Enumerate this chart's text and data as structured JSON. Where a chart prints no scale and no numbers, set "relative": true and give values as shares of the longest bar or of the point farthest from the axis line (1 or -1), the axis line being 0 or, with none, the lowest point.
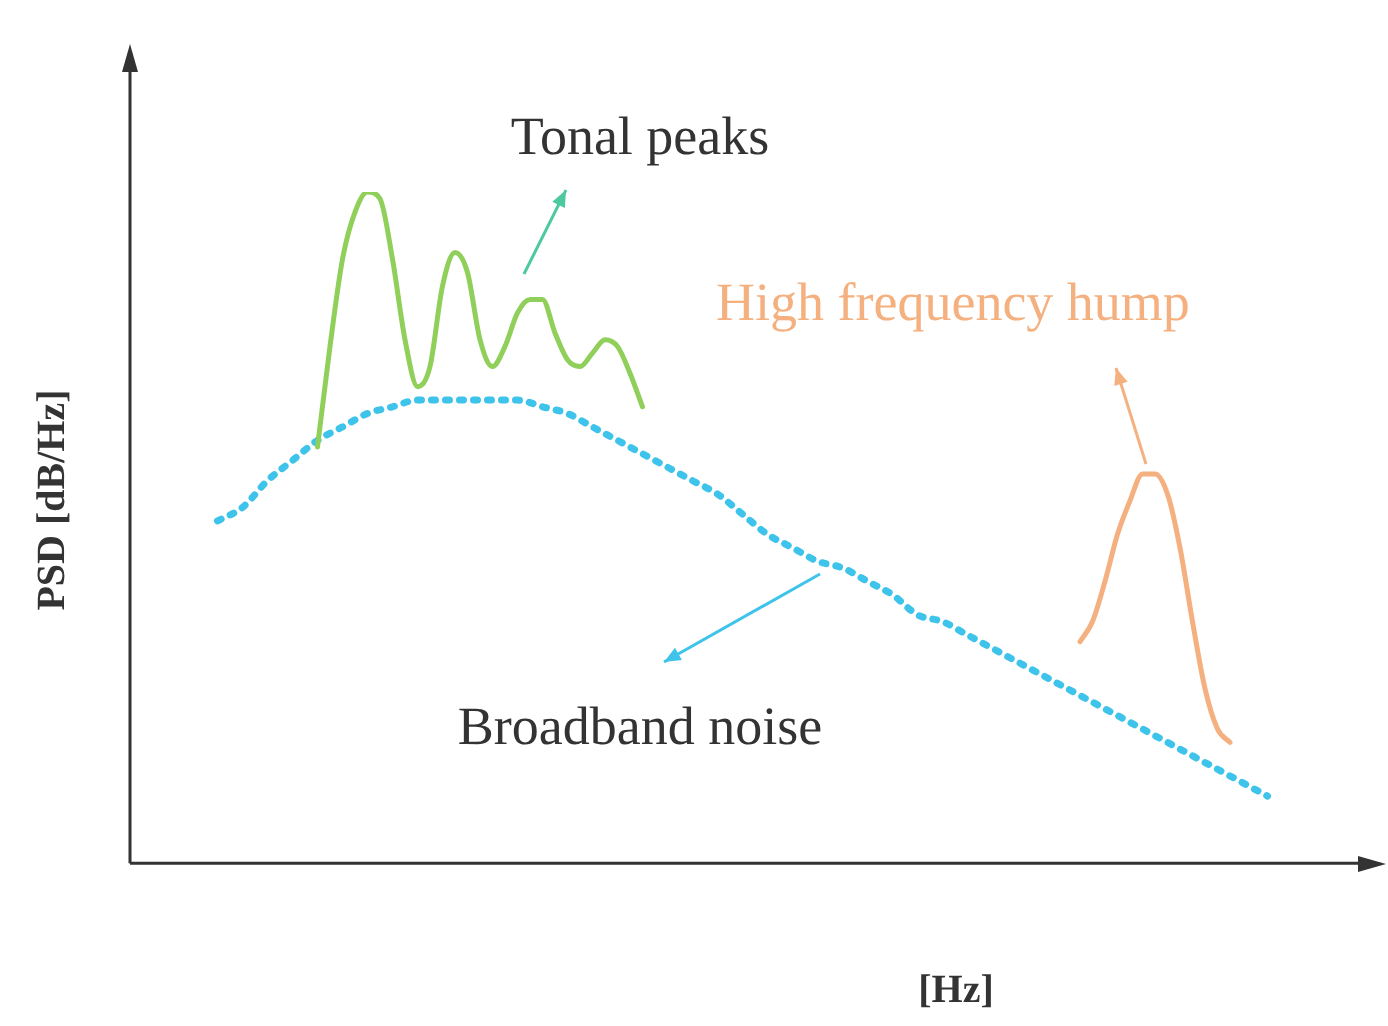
{
  "chart_data": {
    "type": "line",
    "relative": true,
    "xlabel": "[Hz]",
    "ylabel": "PSD [dB/Hz]",
    "marker": "none",
    "categories": [
      null,
      null,
      null,
      null,
      null,
      null,
      null,
      null,
      null,
      null,
      null,
      null,
      null,
      null,
      null,
      null,
      null,
      null,
      null,
      null,
      null,
      null,
      null,
      null,
      null,
      null,
      null,
      null,
      null,
      null,
      null,
      null,
      null,
      null,
      null,
      null,
      null,
      null,
      null,
      null,
      null,
      null,
      null,
      null,
      null,
      null,
      null,
      null,
      null,
      null,
      null,
      null,
      null,
      null,
      null,
      null,
      null,
      null,
      null,
      null,
      null,
      null,
      null,
      null,
      null,
      null,
      null,
      null,
      null,
      null,
      null,
      null,
      null,
      null,
      null,
      null,
      null,
      null,
      null,
      null,
      null,
      null,
      null,
      null,
      null,
      null,
      null,
      null,
      null,
      null,
      null,
      null,
      null,
      null,
      null,
      null,
      null,
      null,
      null,
      null,
      null
    ],
    "series": [
      {
        "name": "Tonal peaks",
        "color": "#8fcf5a",
        "line_style": "solid",
        "values": [
          null,
          null,
          null,
          null,
          null,
          null,
          null,
          null,
          null,
          null,
          null,
          null,
          null,
          null,
          null,
          0.62,
          0.77,
          0.9,
          0.97,
          1.0,
          0.99,
          0.9,
          0.78,
          0.71,
          0.74,
          0.86,
          0.91,
          0.88,
          0.78,
          0.74,
          0.77,
          0.82,
          0.84,
          0.84,
          0.79,
          0.75,
          0.74,
          0.76,
          0.78,
          0.77,
          0.73,
          0.68,
          null,
          null,
          null,
          null,
          null,
          null,
          null,
          null,
          null,
          null,
          null,
          null,
          null,
          null,
          null,
          null,
          null,
          null,
          null,
          null,
          null,
          null,
          null,
          null,
          null,
          null,
          null,
          null,
          null,
          null,
          null,
          null,
          null,
          null,
          null,
          null,
          null,
          null,
          null,
          null,
          null,
          null,
          null,
          null,
          null,
          null,
          null,
          null,
          null,
          null,
          null,
          null,
          null,
          null,
          null,
          null,
          null,
          null,
          null
        ]
      },
      {
        "name": "Broadband noise",
        "color": "#3ec3ea",
        "line_style": "dotted",
        "values": [
          null,
          null,
          null,
          null,
          null,
          null,
          null,
          0.51,
          null,
          0.53,
          null,
          0.57,
          null,
          0.6,
          null,
          0.63,
          null,
          0.65,
          null,
          0.67,
          null,
          0.68,
          null,
          0.69,
          null,
          0.69,
          null,
          0.69,
          null,
          0.69,
          null,
          0.69,
          null,
          0.68,
          null,
          0.67,
          null,
          0.65,
          null,
          0.63,
          null,
          0.61,
          null,
          0.59,
          null,
          0.57,
          null,
          0.55,
          null,
          0.52,
          null,
          0.49,
          null,
          0.47,
          null,
          0.45,
          null,
          0.44,
          null,
          0.42,
          null,
          0.4,
          null,
          0.37,
          null,
          0.36,
          null,
          0.34,
          null,
          0.32,
          null,
          0.3,
          null,
          0.28,
          null,
          0.26,
          null,
          0.24,
          null,
          0.22,
          null,
          0.2,
          null,
          0.18,
          null,
          0.16,
          null,
          0.14,
          null,
          0.12,
          null,
          0.1,
          null,
          null,
          null,
          null,
          null,
          null,
          null,
          null,
          null
        ]
      },
      {
        "name": "High frequency hump",
        "color": "#f4b07f",
        "line_style": "solid",
        "values": [
          null,
          null,
          null,
          null,
          null,
          null,
          null,
          null,
          null,
          null,
          null,
          null,
          null,
          null,
          null,
          null,
          null,
          null,
          null,
          null,
          null,
          null,
          null,
          null,
          null,
          null,
          null,
          null,
          null,
          null,
          null,
          null,
          null,
          null,
          null,
          null,
          null,
          null,
          null,
          null,
          null,
          null,
          null,
          null,
          null,
          null,
          null,
          null,
          null,
          null,
          null,
          null,
          null,
          null,
          null,
          null,
          null,
          null,
          null,
          null,
          null,
          null,
          null,
          null,
          null,
          null,
          null,
          null,
          null,
          null,
          null,
          null,
          null,
          null,
          null,
          null,
          0.33,
          0.36,
          0.42,
          0.49,
          0.54,
          0.58,
          0.58,
          0.55,
          0.47,
          0.36,
          0.26,
          0.2,
          0.18,
          null,
          null,
          null,
          null,
          null,
          null,
          null,
          null,
          null,
          null,
          null,
          null
        ]
      }
    ]
  }
}
